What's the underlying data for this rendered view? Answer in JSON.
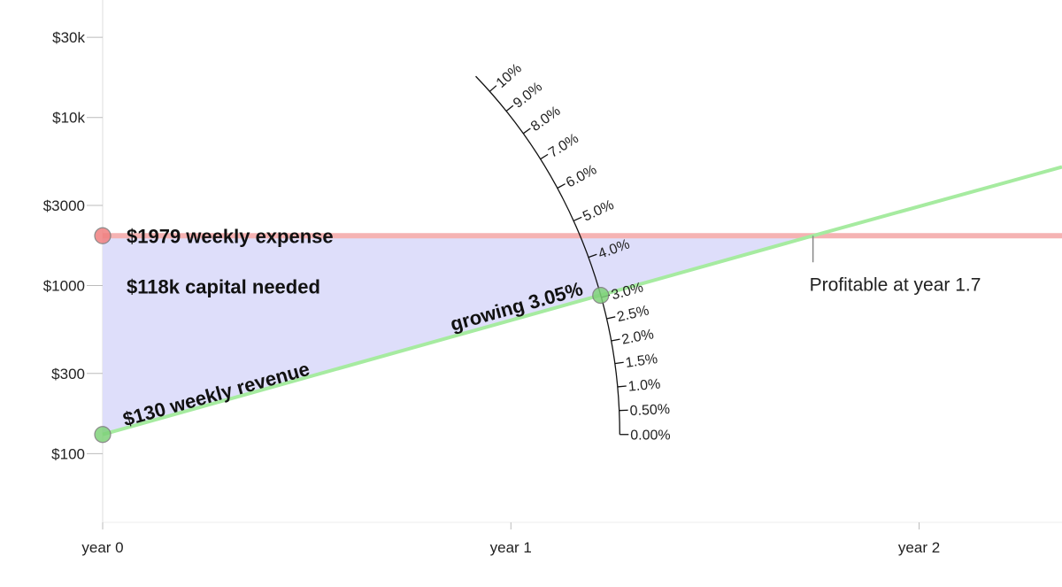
{
  "chart_data": {
    "type": "line",
    "log_y": true,
    "xlim": [
      0,
      2.35
    ],
    "xticks": [
      {
        "value": 0,
        "label": "year 0"
      },
      {
        "value": 1,
        "label": "year 1"
      },
      {
        "value": 2,
        "label": "year 2"
      }
    ],
    "ylim": [
      39,
      50000
    ],
    "yticks": [
      {
        "value": 100,
        "label": "$100"
      },
      {
        "value": 300,
        "label": "$300"
      },
      {
        "value": 1000,
        "label": "$1000"
      },
      {
        "value": 3000,
        "label": "$3000"
      },
      {
        "value": 10000,
        "label": "$10k"
      },
      {
        "value": 30000,
        "label": "$30k"
      }
    ],
    "series": [
      {
        "name": "$1979 weekly expense",
        "color": "#f5b3b3",
        "x": [
          0,
          2.35
        ],
        "values": [
          1979,
          1979
        ]
      },
      {
        "name": "$130 weekly revenue",
        "color": "#a6eba0",
        "x": [
          0,
          1.74,
          2.35
        ],
        "values": [
          130,
          1979,
          5075
        ]
      }
    ],
    "area": {
      "label": "$118k capital needed",
      "color": "#dedefa"
    },
    "growth": {
      "label": "growing 3.05%",
      "rate": 3.05,
      "x": 1.22,
      "ticks": [
        {
          "value": 0,
          "label": "0.00%"
        },
        {
          "value": 0.5,
          "label": "0.50%"
        },
        {
          "value": 1,
          "label": "1.0%"
        },
        {
          "value": 1.5,
          "label": "1.5%"
        },
        {
          "value": 2,
          "label": "2.0%"
        },
        {
          "value": 2.5,
          "label": "2.5%"
        },
        {
          "value": 3,
          "label": "3.0%"
        },
        {
          "value": 4,
          "label": "4.0%"
        },
        {
          "value": 5,
          "label": "5.0%"
        },
        {
          "value": 6,
          "label": "6.0%"
        },
        {
          "value": 7,
          "label": "7.0%"
        },
        {
          "value": 8,
          "label": "8.0%"
        },
        {
          "value": 9,
          "label": "9.0%"
        },
        {
          "value": 10,
          "label": "10%"
        }
      ]
    },
    "breakeven": {
      "x": 1.74,
      "label": "Profitable at year 1.7"
    }
  }
}
